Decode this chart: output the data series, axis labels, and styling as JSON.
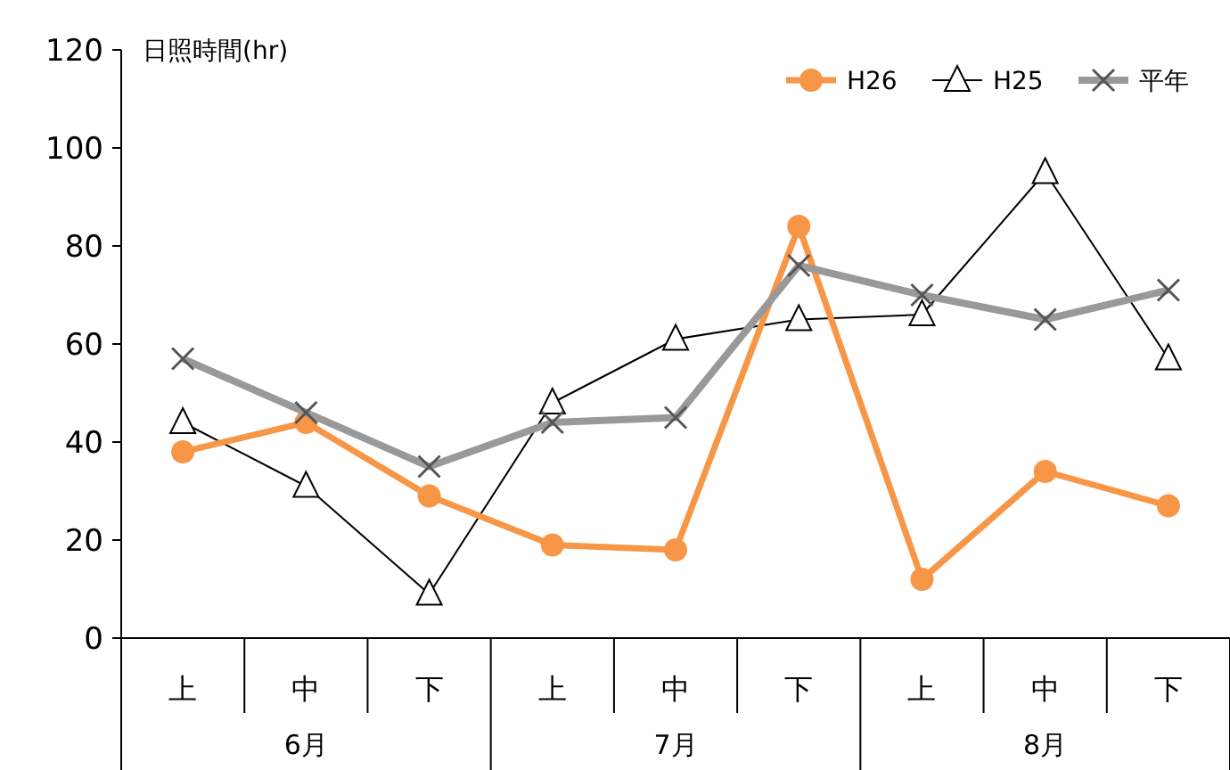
{
  "chart_data": {
    "type": "line",
    "ylabel": "日照時間(hr)",
    "categories": [
      "上",
      "中",
      "下",
      "上",
      "中",
      "下",
      "上",
      "中",
      "下"
    ],
    "annotations": [
      "6月",
      "7月",
      "8月"
    ],
    "series": [
      {
        "name": "H26",
        "color": "#f79646",
        "marker": "circle",
        "values": [
          38,
          44,
          29,
          19,
          18,
          84,
          12,
          34,
          27
        ]
      },
      {
        "name": "H25",
        "color": "#000000",
        "marker": "triangle",
        "values": [
          44,
          31,
          9,
          48,
          61,
          65,
          66,
          95,
          57
        ]
      },
      {
        "name": "平年",
        "color": "#999999",
        "marker": "cross",
        "values": [
          57,
          46,
          35,
          44,
          45,
          76,
          70,
          65,
          71
        ]
      }
    ],
    "ylim": [
      0,
      120
    ],
    "yticks": [
      0,
      20,
      40,
      60,
      80,
      100,
      120
    ],
    "grid": false,
    "legend": "top right"
  }
}
